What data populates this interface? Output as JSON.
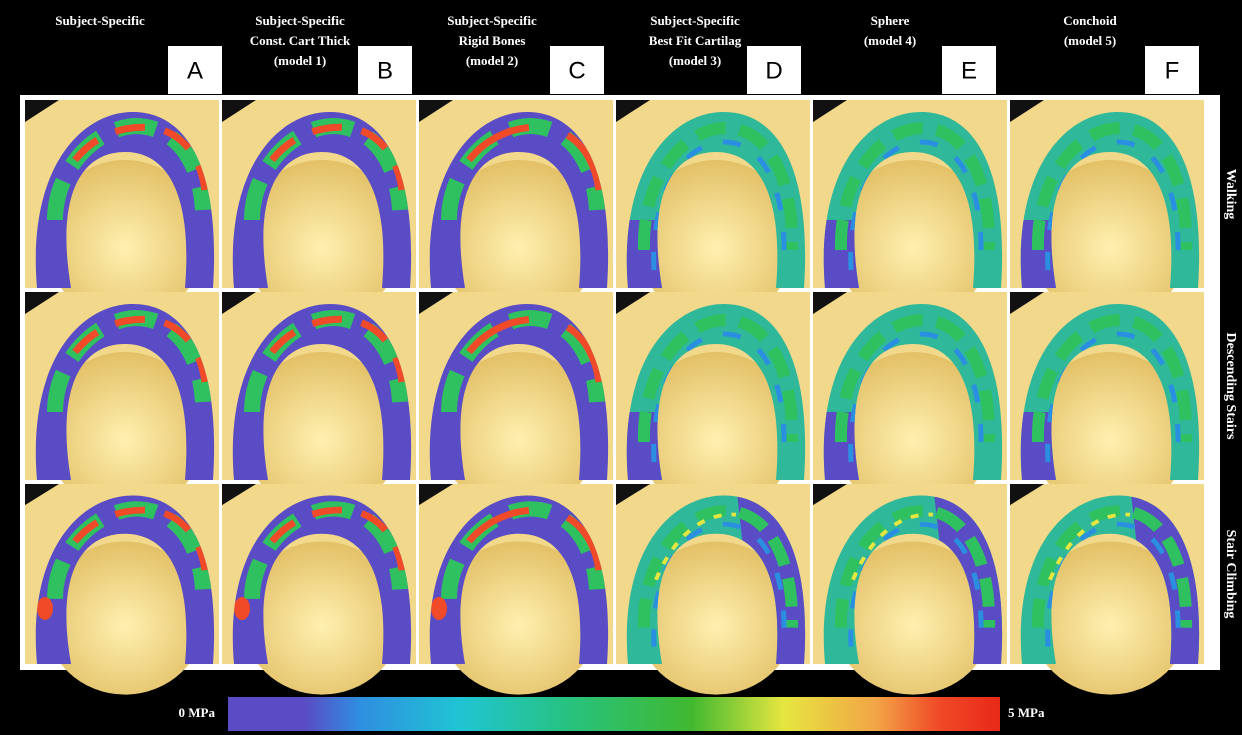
{
  "columns": [
    {
      "title": [
        "Subject-Specific"
      ],
      "letter": "A"
    },
    {
      "title": [
        "Subject-Specific",
        "Const. Cart Thick",
        "(model 1)"
      ],
      "letter": "B"
    },
    {
      "title": [
        "Subject-Specific",
        "Rigid Bones",
        "(model 2)"
      ],
      "letter": "C"
    },
    {
      "title": [
        "Subject-Specific",
        "Best Fit Cartilag",
        "(model 3)"
      ],
      "letter": "D"
    },
    {
      "title": [
        "Sphere",
        "(model 4)"
      ],
      "letter": "E"
    },
    {
      "title": [
        "Conchoid",
        "(model 5)"
      ],
      "letter": "F"
    }
  ],
  "rows": [
    "Walking",
    "Descending Stairs",
    "Stair Climbing"
  ],
  "colorbar": {
    "min_label": "0 MPa",
    "max_label": "5 MPa"
  }
}
